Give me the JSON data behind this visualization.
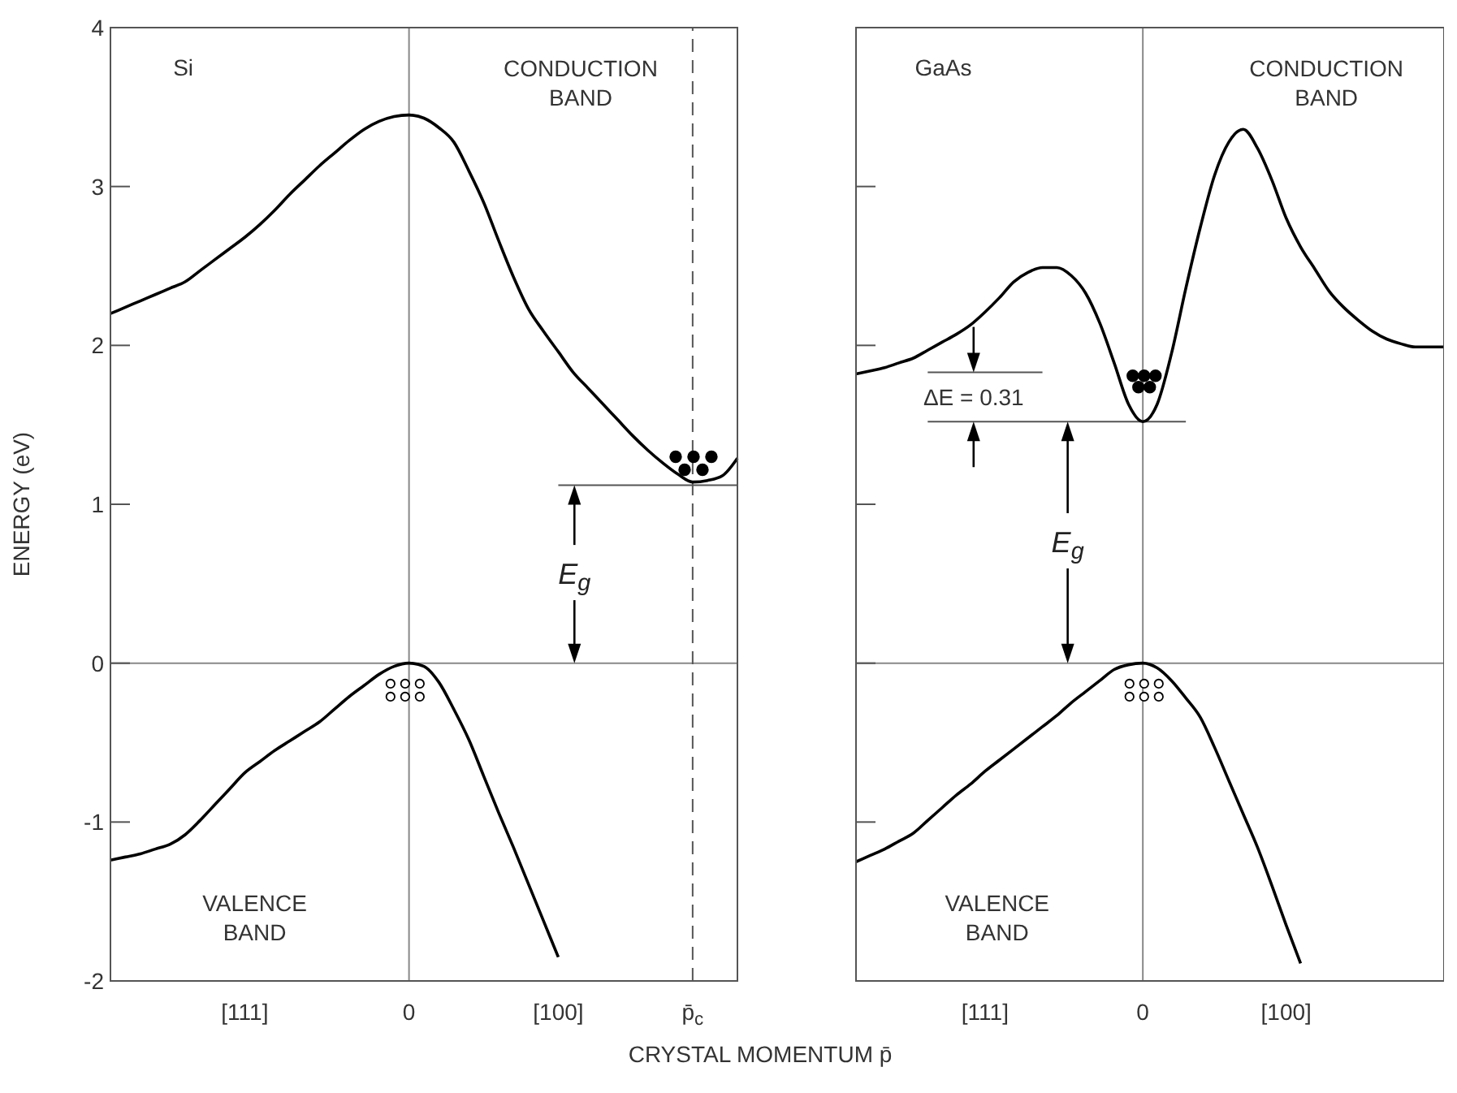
{
  "chart_data": [
    {
      "type": "line",
      "title": "Si",
      "ylabel": "ENERGY (eV)",
      "xlabel": "CRYSTAL MOMENTUM p̄",
      "ylim": [
        -2,
        4
      ],
      "yticks": [
        -2,
        -1,
        0,
        1,
        2,
        3,
        4
      ],
      "categories": [
        null,
        null,
        null,
        null,
        null,
        null,
        null,
        null,
        null,
        "[111]",
        null,
        null,
        null,
        null,
        null,
        null,
        null,
        null,
        null,
        null,
        "0",
        null,
        null,
        null,
        null,
        null,
        null,
        null,
        null,
        null,
        "[100]",
        null,
        null,
        null,
        null,
        null,
        null,
        null,
        null,
        "p̄$_{c}$",
        null,
        null,
        null
      ],
      "marker": "none",
      "line_style": "solid",
      "series": [
        {
          "color": "#000000",
          "values": [
            2.2,
            2.24,
            2.28,
            2.32,
            2.36,
            2.4,
            2.47,
            2.54,
            2.61,
            2.68,
            2.76,
            2.85,
            2.95,
            3.04,
            3.13,
            3.21,
            3.29,
            3.36,
            3.41,
            3.44,
            3.45,
            3.43,
            3.37,
            3.28,
            3.1,
            2.9,
            2.66,
            2.43,
            2.23,
            2.09,
            1.96,
            1.83,
            1.73,
            1.63,
            1.53,
            1.43,
            1.34,
            1.26,
            1.19,
            1.14,
            1.15,
            1.18,
            1.29
          ]
        },
        {
          "color": "#000000",
          "values": [
            -1.24,
            -1.22,
            -1.2,
            -1.17,
            -1.14,
            -1.08,
            -0.99,
            -0.89,
            -0.79,
            -0.69,
            -0.62,
            -0.55,
            -0.49,
            -0.43,
            -0.37,
            -0.29,
            -0.21,
            -0.14,
            -0.07,
            -0.02,
            0,
            -0.02,
            -0.12,
            -0.29,
            -0.48,
            -0.71,
            -0.94,
            -1.16,
            -1.39,
            -1.62,
            -1.85,
            null,
            null,
            null,
            null,
            null,
            null,
            null,
            null,
            null,
            null,
            null,
            null
          ]
        }
      ],
      "ref_lines": [
        {
          "axis": "y",
          "value": 0,
          "color": "#888888"
        },
        {
          "axis": "x",
          "value": "0",
          "color": "#888888"
        },
        {
          "axis": "x",
          "value": "p̄$_{c}$",
          "color": "#555555",
          "line_style": "dashed"
        },
        {
          "axis": "y",
          "value": 1.12,
          "color": "#555555"
        }
      ],
      "annotations": [
        "CONDUCTION BAND",
        "VALENCE BAND",
        "E$_{g}$"
      ]
    },
    {
      "type": "line",
      "title": "GaAs",
      "ylim": [
        -2,
        4
      ],
      "yticks": [
        {
          "value": -2,
          "label": null
        },
        {
          "value": -1,
          "label": null
        },
        {
          "value": 0,
          "label": null
        },
        {
          "value": 1,
          "label": null
        },
        {
          "value": 2,
          "label": null
        },
        {
          "value": 3,
          "label": null
        },
        {
          "value": 4,
          "label": null
        }
      ],
      "categories": [
        null,
        null,
        null,
        null,
        null,
        null,
        null,
        null,
        null,
        "[111]",
        null,
        null,
        null,
        null,
        null,
        null,
        null,
        null,
        null,
        null,
        "0",
        null,
        null,
        null,
        null,
        null,
        null,
        null,
        null,
        null,
        "[100]",
        null,
        null,
        null,
        null,
        null,
        null,
        null,
        null,
        null,
        null,
        null
      ],
      "tick_labels": "x",
      "marker": "none",
      "line_style": "solid",
      "series": [
        {
          "color": "#000000",
          "values": [
            1.82,
            1.84,
            1.86,
            1.89,
            1.92,
            1.97,
            2.02,
            2.07,
            2.13,
            2.21,
            2.3,
            2.4,
            2.46,
            2.49,
            2.49,
            2.44,
            2.33,
            2.14,
            1.89,
            1.63,
            1.52,
            1.63,
            1.95,
            2.36,
            2.74,
            3.07,
            3.28,
            3.36,
            3.24,
            3.04,
            2.8,
            2.62,
            2.48,
            2.34,
            2.24,
            2.16,
            2.09,
            2.04,
            2.01,
            1.99,
            1.99,
            1.99
          ]
        },
        {
          "color": "#000000",
          "values": [
            -1.25,
            -1.21,
            -1.17,
            -1.12,
            -1.07,
            -0.99,
            -0.91,
            -0.83,
            -0.76,
            -0.68,
            -0.61,
            -0.54,
            -0.47,
            -0.4,
            -0.33,
            -0.25,
            -0.18,
            -0.11,
            -0.04,
            -0.01,
            0,
            -0.03,
            -0.11,
            -0.22,
            -0.34,
            -0.53,
            -0.74,
            -0.95,
            -1.16,
            -1.4,
            -1.65,
            -1.89,
            null,
            null,
            null,
            null,
            null,
            null,
            null,
            null,
            null,
            null
          ]
        }
      ],
      "ref_lines": [
        {
          "axis": "y",
          "value": 0,
          "color": "#888888"
        },
        {
          "axis": "x",
          "value": "0",
          "color": "#888888"
        },
        {
          "axis": "y",
          "value": 1.52,
          "color": "#555555"
        },
        {
          "axis": "y",
          "value": 1.83,
          "color": "#555555"
        }
      ],
      "annotations": [
        "CONDUCTION BAND",
        "VALENCE BAND",
        "E$_{g}$",
        "ΔE = 0.31"
      ]
    }
  ]
}
